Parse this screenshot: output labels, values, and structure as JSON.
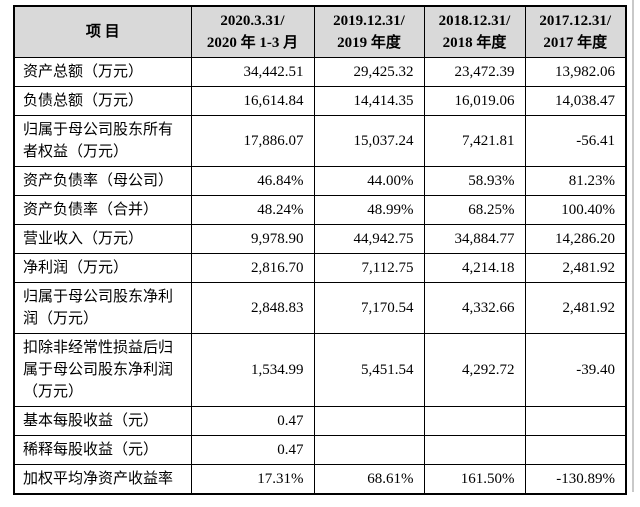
{
  "colors": {
    "header_bg": "#d9d9d9",
    "table_border": "#000000",
    "page_bg": "#ffffff",
    "edge_line": "#c9c9c9"
  },
  "table": {
    "header": {
      "item_label": "项 目",
      "periods": [
        {
          "line1": "2020.3.31/",
          "line2": "2020 年 1-3 月"
        },
        {
          "line1": "2019.12.31/",
          "line2": "2019 年度"
        },
        {
          "line1": "2018.12.31/",
          "line2": "2018 年度"
        },
        {
          "line1": "2017.12.31/",
          "line2": "2017 年度"
        }
      ]
    },
    "rows": [
      {
        "label": "资产总额（万元）",
        "values": [
          "34,442.51",
          "29,425.32",
          "23,472.39",
          "13,982.06"
        ]
      },
      {
        "label": "负债总额（万元）",
        "values": [
          "16,614.84",
          "14,414.35",
          "16,019.06",
          "14,038.47"
        ]
      },
      {
        "label": "归属于母公司股东所有者权益（万元）",
        "values": [
          "17,886.07",
          "15,037.24",
          "7,421.81",
          "-56.41"
        ]
      },
      {
        "label": "资产负债率（母公司）",
        "values": [
          "46.84%",
          "44.00%",
          "58.93%",
          "81.23%"
        ]
      },
      {
        "label": "资产负债率（合并）",
        "values": [
          "48.24%",
          "48.99%",
          "68.25%",
          "100.40%"
        ]
      },
      {
        "label": "营业收入（万元）",
        "values": [
          "9,978.90",
          "44,942.75",
          "34,884.77",
          "14,286.20"
        ]
      },
      {
        "label": "净利润（万元）",
        "values": [
          "2,816.70",
          "7,112.75",
          "4,214.18",
          "2,481.92"
        ]
      },
      {
        "label": "归属于母公司股东净利润（万元）",
        "values": [
          "2,848.83",
          "7,170.54",
          "4,332.66",
          "2,481.92"
        ]
      },
      {
        "label": "扣除非经常性损益后归属于母公司股东净利润（万元）",
        "values": [
          "1,534.99",
          "5,451.54",
          "4,292.72",
          "-39.40"
        ]
      },
      {
        "label": "基本每股收益（元）",
        "values": [
          "0.47",
          "",
          "",
          ""
        ]
      },
      {
        "label": "稀释每股收益（元）",
        "values": [
          "0.47",
          "",
          "",
          ""
        ]
      },
      {
        "label": "加权平均净资产收益率",
        "values": [
          "17.31%",
          "68.61%",
          "161.50%",
          "-130.89%"
        ]
      }
    ]
  }
}
